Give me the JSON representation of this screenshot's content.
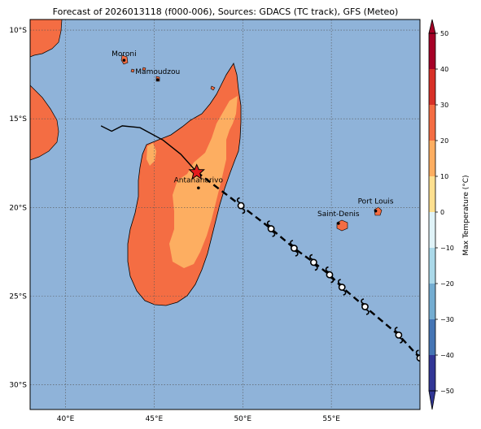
{
  "title": "Forecast of 2026013118 (f000-006), Sources: GDACS (TC track), GFS (Meteo)",
  "colorbar_label": "Max Temperature (°C)",
  "colorbar_ticks": [
    "50",
    "40",
    "30",
    "20",
    "10",
    "0",
    "−10",
    "−20",
    "−30",
    "−40",
    "−50"
  ],
  "colors": {
    "ocean": "#8fb3d9",
    "land_warm": "#f46d43",
    "land_hot_interior": "#fdae61",
    "track": "#000000",
    "storm_marker": "#e31a1c",
    "colorbar": [
      "#313695",
      "#4575b4",
      "#74add1",
      "#abd9e9",
      "#e0f3f8",
      "#ffffbf",
      "#fee090",
      "#fdae61",
      "#f46d43",
      "#d73027",
      "#a50026"
    ]
  },
  "map": {
    "lon_ticks": [
      "40°E",
      "45°E",
      "50°E",
      "55°E"
    ],
    "lat_ticks": [
      "10°S",
      "15°S",
      "20°S",
      "25°S",
      "30°S"
    ],
    "cities": [
      {
        "name": "Moroni"
      },
      {
        "name": "Mamoudzou"
      },
      {
        "name": "Antananarivo"
      },
      {
        "name": "Saint-Denis"
      },
      {
        "name": "Port Louis"
      }
    ],
    "storm_symbol": "tropical-cyclone-icon",
    "current_position_symbol": "star-icon"
  },
  "chart_data": {
    "type": "map",
    "title": "Forecast of 2026013118 (f000-006), Sources: GDACS (TC track), GFS (Meteo)",
    "lon_range": [
      38,
      60
    ],
    "lat_range": [
      -31.4,
      -9.4
    ],
    "lon_ticks": [
      40,
      45,
      50,
      55
    ],
    "lat_ticks": [
      -10,
      -15,
      -20,
      -25,
      -30
    ],
    "grid": true,
    "colorbar": {
      "label": "Max Temperature (°C)",
      "min": -50,
      "max": 50,
      "step": 10
    },
    "past_track": [
      {
        "lon": 42.0,
        "lat": -15.4
      },
      {
        "lon": 42.6,
        "lat": -15.7
      },
      {
        "lon": 43.2,
        "lat": -15.4
      },
      {
        "lon": 44.2,
        "lat": -15.5
      },
      {
        "lon": 45.5,
        "lat": -16.2
      },
      {
        "lon": 46.5,
        "lat": -17.0
      },
      {
        "lon": 47.4,
        "lat": -18.0
      }
    ],
    "current_position": {
      "lon": 47.4,
      "lat": -18.0
    },
    "forecast_track": [
      {
        "lon": 47.4,
        "lat": -18.0
      },
      {
        "lon": 49.9,
        "lat": -19.9
      },
      {
        "lon": 51.6,
        "lat": -21.2
      },
      {
        "lon": 52.9,
        "lat": -22.3
      },
      {
        "lon": 54.0,
        "lat": -23.1
      },
      {
        "lon": 54.9,
        "lat": -23.8
      },
      {
        "lon": 55.6,
        "lat": -24.5
      },
      {
        "lon": 56.9,
        "lat": -25.6
      },
      {
        "lon": 58.8,
        "lat": -27.2
      },
      {
        "lon": 60.0,
        "lat": -28.5
      }
    ],
    "cities": [
      {
        "name": "Moroni",
        "lon": 43.3,
        "lat": -11.7
      },
      {
        "name": "Mamoudzou",
        "lon": 45.2,
        "lat": -12.8
      },
      {
        "name": "Antananarivo",
        "lon": 47.5,
        "lat": -18.9
      },
      {
        "name": "Saint-Denis",
        "lon": 55.4,
        "lat": -20.9
      },
      {
        "name": "Port Louis",
        "lon": 57.5,
        "lat": -20.2
      }
    ]
  }
}
